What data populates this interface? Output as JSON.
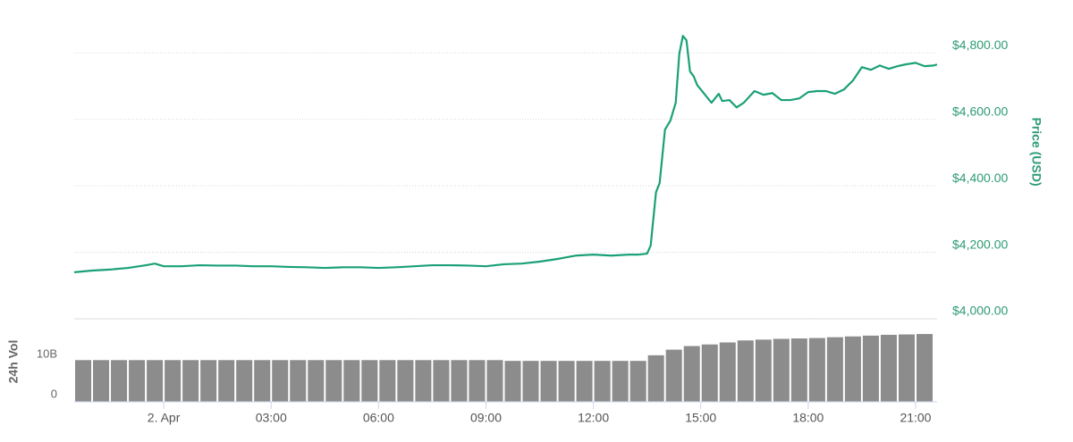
{
  "chart_data": [
    {
      "type": "line",
      "ylabel": "Price (USD)",
      "color": "#1aa077",
      "grid": true,
      "xlim": [
        -2.5,
        21.6
      ],
      "ylim": [
        4000,
        4900
      ],
      "yticks": [
        {
          "value": 4000,
          "label": "$4,000.00"
        },
        {
          "value": 4200,
          "label": "$4,200.00"
        },
        {
          "value": 4400,
          "label": "$4,400.00"
        },
        {
          "value": 4600,
          "label": "$4,600.00"
        },
        {
          "value": 4800,
          "label": "$4,800.00"
        }
      ],
      "x": [
        -2.5,
        -2,
        -1.5,
        -1,
        -0.5,
        -0.25,
        0,
        0.5,
        1,
        1.5,
        2,
        2.5,
        3,
        3.5,
        4,
        4.5,
        5,
        5.5,
        6,
        6.5,
        7,
        7.5,
        8,
        8.5,
        9,
        9.5,
        10,
        10.5,
        11,
        11.5,
        12,
        12.5,
        13,
        13.25,
        13.5,
        13.6,
        13.75,
        13.85,
        14,
        14.15,
        14.3,
        14.4,
        14.5,
        14.6,
        14.7,
        14.8,
        14.9,
        15,
        15.2,
        15.3,
        15.5,
        15.6,
        15.8,
        16,
        16.2,
        16.5,
        16.75,
        17,
        17.25,
        17.5,
        17.75,
        18,
        18.25,
        18.5,
        18.75,
        19,
        19.25,
        19.5,
        19.75,
        20,
        20.25,
        20.5,
        20.75,
        21,
        21.25,
        21.5,
        21.6
      ],
      "values": [
        4140,
        4145,
        4148,
        4153,
        4161,
        4166,
        4158,
        4158,
        4161,
        4160,
        4160,
        4158,
        4158,
        4156,
        4155,
        4153,
        4155,
        4155,
        4153,
        4155,
        4158,
        4161,
        4161,
        4160,
        4158,
        4164,
        4166,
        4172,
        4180,
        4190,
        4193,
        4190,
        4193,
        4193,
        4196,
        4220,
        4381,
        4408,
        4569,
        4596,
        4650,
        4797,
        4851,
        4838,
        4744,
        4730,
        4703,
        4690,
        4663,
        4650,
        4677,
        4655,
        4658,
        4636,
        4650,
        4685,
        4674,
        4679,
        4658,
        4658,
        4663,
        4682,
        4685,
        4685,
        4677,
        4690,
        4717,
        4757,
        4749,
        4762,
        4752,
        4760,
        4766,
        4770,
        4760,
        4762,
        4765
      ]
    },
    {
      "type": "bar",
      "ylabel": "24h Vol",
      "color": "#8c8c8c",
      "xlim": [
        -2.5,
        21.6
      ],
      "xticks": [
        {
          "value": 0,
          "label": "2. Apr"
        },
        {
          "value": 3,
          "label": "03:00"
        },
        {
          "value": 6,
          "label": "06:00"
        },
        {
          "value": 9,
          "label": "09:00"
        },
        {
          "value": 12,
          "label": "12:00"
        },
        {
          "value": 15,
          "label": "15:00"
        },
        {
          "value": 18,
          "label": "18:00"
        },
        {
          "value": 21,
          "label": "21:00"
        }
      ],
      "ylim": [
        0,
        20700000000
      ],
      "yticks": [
        0,
        {
          "value": 10000000000,
          "label": "10B"
        }
      ],
      "x": [
        -2.25,
        -1.75,
        -1.25,
        -0.75,
        -0.25,
        0.25,
        0.75,
        1.25,
        1.75,
        2.25,
        2.75,
        3.25,
        3.75,
        4.25,
        4.75,
        5.25,
        5.75,
        6.25,
        6.75,
        7.25,
        7.75,
        8.25,
        8.75,
        9.25,
        9.75,
        10.25,
        10.75,
        11.25,
        11.75,
        12.25,
        12.75,
        13.25,
        13.75,
        14.25,
        14.75,
        15.25,
        15.75,
        16.25,
        16.75,
        17.25,
        17.75,
        18.25,
        18.75,
        19.25,
        19.75,
        20.25,
        20.75,
        21.25
      ],
      "values": [
        10400000000,
        10400000000,
        10400000000,
        10400000000,
        10400000000,
        10400000000,
        10400000000,
        10400000000,
        10400000000,
        10400000000,
        10400000000,
        10400000000,
        10400000000,
        10400000000,
        10400000000,
        10400000000,
        10400000000,
        10400000000,
        10400000000,
        10400000000,
        10400000000,
        10400000000,
        10400000000,
        10400000000,
        10200000000,
        10200000000,
        10200000000,
        10200000000,
        10200000000,
        10200000000,
        10200000000,
        10200000000,
        11600000000,
        13000000000,
        13900000000,
        14300000000,
        14800000000,
        15300000000,
        15500000000,
        15700000000,
        15800000000,
        15900000000,
        16100000000,
        16300000000,
        16500000000,
        16700000000,
        16800000000,
        16900000000
      ]
    }
  ]
}
